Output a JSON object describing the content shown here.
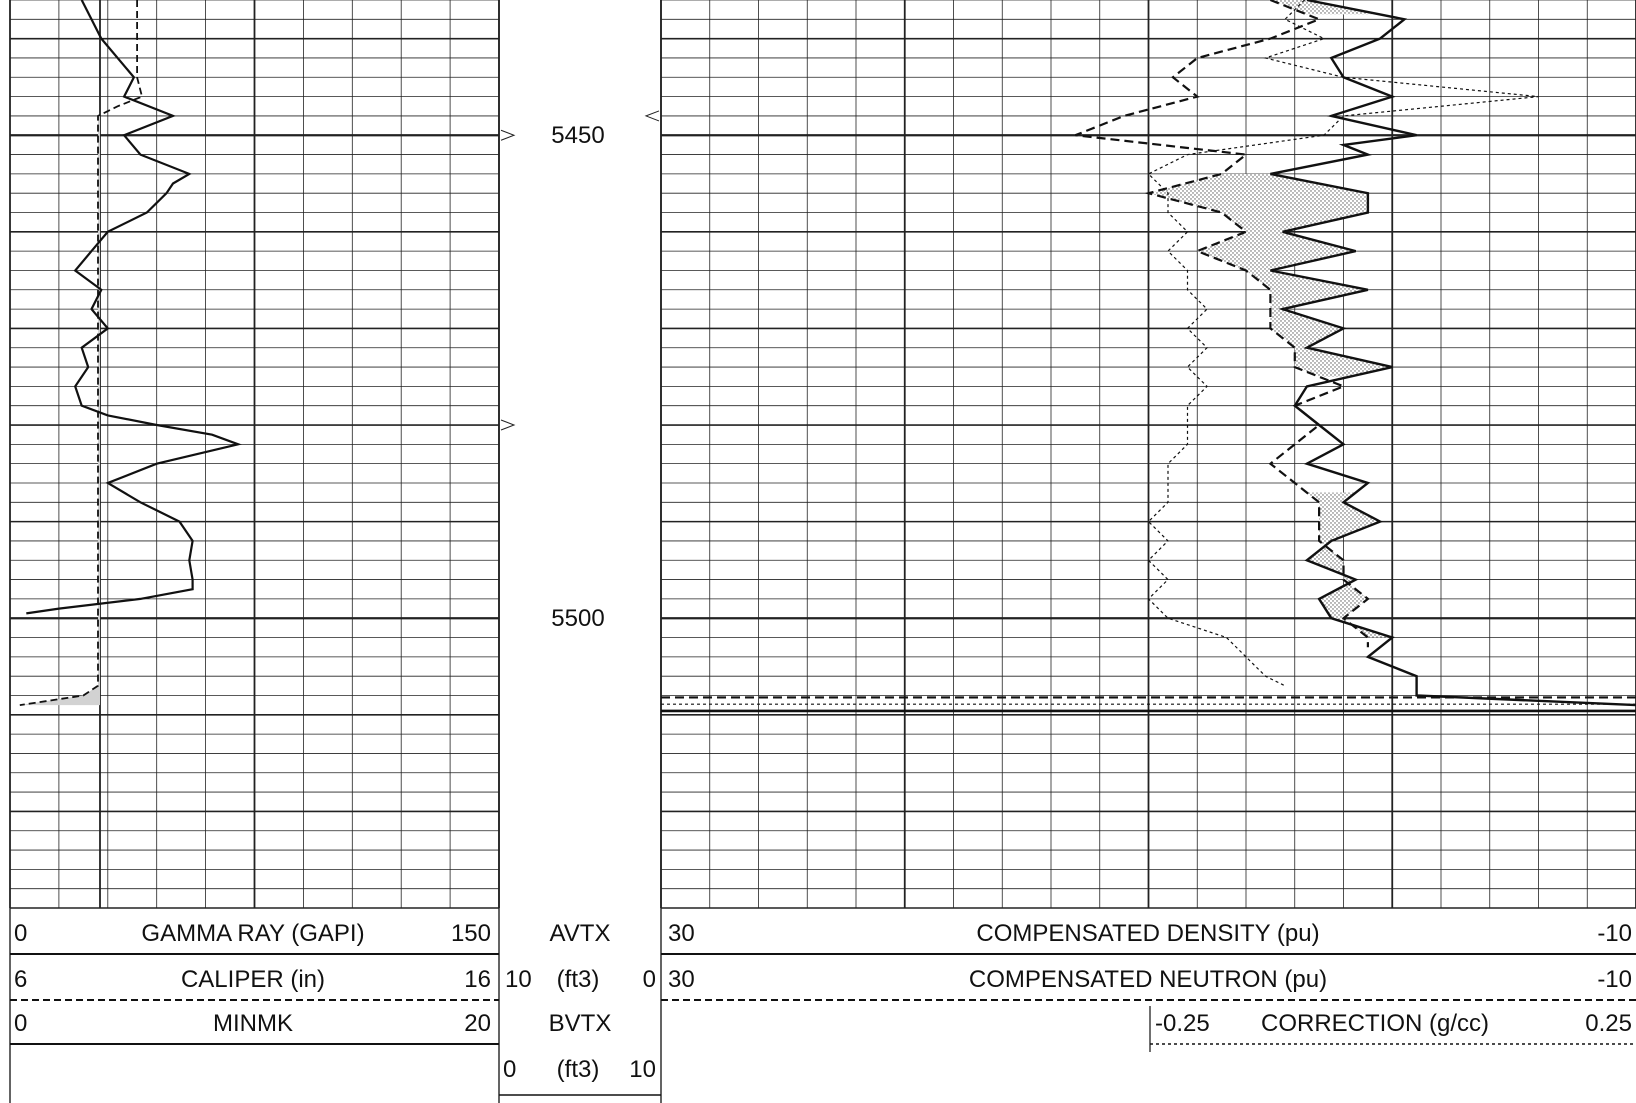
{
  "chart_data": {
    "type": "line",
    "title": "",
    "depth_axis": {
      "unit": "",
      "range": [
        5436,
        5530
      ],
      "tick_labels": [
        "5450",
        "5500"
      ],
      "tick_values": [
        5450,
        5500
      ]
    },
    "tracks": [
      {
        "name": "track-1",
        "scale": "linear",
        "grid": true,
        "curves": [
          {
            "name": "GAMMA RAY (GAPI)",
            "min": "0",
            "max": "150",
            "style": "solid",
            "depth": [
              5436,
              5440,
              5444,
              5446,
              5448,
              5450,
              5452,
              5454,
              5455,
              5456,
              5458,
              5460,
              5462,
              5464,
              5466,
              5468,
              5470,
              5472,
              5474,
              5476,
              5478,
              5479,
              5480,
              5481,
              5482,
              5484,
              5486,
              5488,
              5490,
              5492,
              5494,
              5496,
              5497,
              5498,
              5499,
              5499.5
            ],
            "values": [
              22,
              28,
              38,
              35,
              50,
              35,
              40,
              55,
              50,
              48,
              42,
              30,
              25,
              20,
              28,
              25,
              30,
              22,
              24,
              20,
              22,
              30,
              45,
              62,
              70,
              45,
              30,
              40,
              52,
              56,
              55,
              56,
              56,
              40,
              15,
              5
            ]
          },
          {
            "name": "CALIPER (in)",
            "min": "6",
            "max": "16",
            "style": "dashed",
            "depth": [
              5436,
              5440,
              5444,
              5446,
              5447,
              5448,
              5450,
              5460,
              5470,
              5480,
              5490,
              5500,
              5505,
              5507,
              5508,
              5509
            ],
            "values": [
              8.6,
              8.6,
              8.6,
              8.7,
              8.2,
              7.8,
              7.8,
              7.8,
              7.8,
              7.8,
              7.8,
              7.8,
              7.8,
              7.8,
              7.5,
              6.2
            ]
          }
        ],
        "shading": {
          "between": [
            "CALIPER (in)",
            "bit size"
          ],
          "depth_range": [
            5448,
            5509
          ],
          "fill": "#d0d0d0"
        }
      },
      {
        "name": "track-3",
        "scale": "linear",
        "grid": true,
        "curves": [
          {
            "name": "COMPENSATED DENSITY (pu)",
            "min": "30",
            "max": "-10",
            "style": "solid",
            "depth": [
              5436,
              5438,
              5440,
              5442,
              5444,
              5446,
              5448,
              5450,
              5451,
              5452,
              5454,
              5456,
              5458,
              5460,
              5462,
              5464,
              5466,
              5468,
              5470,
              5472,
              5474,
              5476,
              5478,
              5480,
              5482,
              5484,
              5486,
              5488,
              5490,
              5492,
              5494,
              5496,
              5498,
              5500,
              5502,
              5503,
              5504,
              5506,
              5508,
              5509
            ],
            "values": [
              3.5,
              -0.5,
              0.5,
              2.5,
              2,
              0,
              2.5,
              -1,
              2,
              1,
              5,
              1,
              1,
              4.5,
              1.5,
              5,
              1,
              4.5,
              2,
              3.5,
              0,
              3.5,
              4,
              3,
              2,
              3.5,
              1,
              2,
              0.5,
              2.5,
              3.5,
              1.5,
              3,
              2.5,
              0,
              0.5,
              1,
              -1,
              -1,
              -10
            ]
          },
          {
            "name": "COMPENSATED NEUTRON (pu)",
            "min": "30",
            "max": "-10",
            "style": "dashed",
            "depth": [
              5436,
              5438,
              5440,
              5442,
              5444,
              5446,
              5448,
              5450,
              5452,
              5454,
              5456,
              5458,
              5460,
              5462,
              5464,
              5466,
              5468,
              5470,
              5472,
              5474,
              5476,
              5478,
              5480,
              5482,
              5484,
              5486,
              5488,
              5490,
              5492,
              5494,
              5496,
              5498,
              5500,
              5502,
              5503
            ],
            "values": [
              5,
              3,
              5,
              8,
              9,
              8,
              11,
              13,
              6,
              7,
              10,
              7,
              6,
              8,
              6,
              5,
              5,
              5,
              4,
              4,
              2,
              4,
              3,
              4,
              5,
              4,
              3,
              3,
              3,
              2,
              2,
              1,
              2,
              1,
              1
            ]
          },
          {
            "name": "CORRECTION (g/cc)",
            "min": "-0.25",
            "max": "0.25",
            "style": "dotted",
            "depth": [
              5436,
              5438,
              5440,
              5442,
              5444,
              5446,
              5448,
              5450,
              5452,
              5454,
              5456,
              5458,
              5460,
              5462,
              5464,
              5466,
              5468,
              5470,
              5472,
              5474,
              5476,
              5478,
              5480,
              5482,
              5484,
              5486,
              5488,
              5490,
              5492,
              5494,
              5496,
              5498,
              5500,
              5502,
              5504,
              5506,
              5507
            ],
            "values": [
              0.08,
              0.07,
              0.09,
              0.06,
              0.1,
              0.2,
              0.1,
              0.09,
              0.02,
              0,
              0.01,
              0.01,
              0.02,
              0.01,
              0.02,
              0.02,
              0.03,
              0.02,
              0.03,
              0.02,
              0.03,
              0.02,
              0.02,
              0.02,
              0.01,
              0.01,
              0.01,
              0,
              0.01,
              0,
              0.01,
              0,
              0.01,
              0.04,
              0.05,
              0.06,
              0.07
            ]
          }
        ],
        "shading": {
          "between": [
            "COMPENSATED DENSITY (pu)",
            "COMPENSATED NEUTRON (pu)"
          ],
          "fill": "stipple"
        }
      }
    ],
    "header_rows": [
      {
        "track1": {
          "left": "0",
          "name": "GAMMA RAY (GAPI)",
          "right": "150"
        },
        "track2": {
          "left": "",
          "name": "AVTX",
          "right": ""
        },
        "track3": {
          "left": "30",
          "name": "COMPENSATED DENSITY (pu)",
          "right": "-10"
        }
      },
      {
        "track1": {
          "left": "6",
          "name": "CALIPER (in)",
          "right": "16"
        },
        "track2": {
          "left": "10",
          "name": "(ft3)",
          "right": "0"
        },
        "track3": {
          "left": "30",
          "name": "COMPENSATED NEUTRON (pu)",
          "right": "-10"
        }
      },
      {
        "track1": {
          "left": "0",
          "name": "MINMK",
          "right": "20"
        },
        "track2": {
          "left": "",
          "name": "BVTX",
          "right": ""
        },
        "track3": {
          "left": "-0.25",
          "name": "CORRECTION (g/cc)",
          "right": "0.25"
        }
      },
      {
        "track1": {
          "left": "",
          "name": "",
          "right": ""
        },
        "track2": {
          "left": "0",
          "name": "(ft3)",
          "right": "10"
        },
        "track3": {
          "left": "",
          "name": "",
          "right": ""
        }
      }
    ]
  },
  "colors": {
    "line": "#111111",
    "grid": "#222222",
    "shade_gray": "#d2d2d2",
    "stipple": "#9a9a9a",
    "background": "#ffffff"
  }
}
